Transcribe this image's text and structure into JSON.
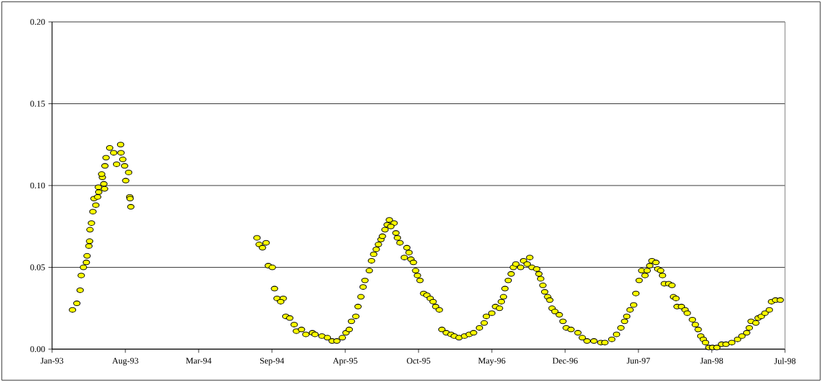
{
  "chart_data": {
    "type": "scatter",
    "marker": "circle",
    "grid": "y",
    "xlim": [
      "1993-01-25",
      "1998-07-28"
    ],
    "xticks": [
      {
        "value": "1993-01-25",
        "label": "Jan-93"
      },
      {
        "value": "1993-08-14",
        "label": "Aug-93"
      },
      {
        "value": "1994-03-03",
        "label": "Mar-94"
      },
      {
        "value": "1994-09-20",
        "label": "Sep-94"
      },
      {
        "value": "1995-04-09",
        "label": "Apr-95"
      },
      {
        "value": "1995-10-27",
        "label": "Oct-95"
      },
      {
        "value": "1996-05-15",
        "label": "May-96"
      },
      {
        "value": "1996-12-02",
        "label": "Dec-96"
      },
      {
        "value": "1997-06-21",
        "label": "Jun-97"
      },
      {
        "value": "1998-01-08",
        "label": "Jan-98"
      },
      {
        "value": "1998-07-28",
        "label": "Jul-98"
      }
    ],
    "ylim": [
      0,
      0.2
    ],
    "yticks": [
      {
        "value": 0,
        "label": "0.00"
      },
      {
        "value": 0.05,
        "label": "0.05"
      },
      {
        "value": 0.1,
        "label": "0.10"
      },
      {
        "value": 0.15,
        "label": "0.15"
      },
      {
        "value": 0.2,
        "label": "0.20"
      }
    ],
    "series": [
      {
        "color": "#ffff00",
        "x": [
          "1993-03-22",
          "1993-04-03",
          "1993-04-12",
          "1993-04-15",
          "1993-04-21",
          "1993-04-29",
          "1993-05-01",
          "1993-05-06",
          "1993-05-08",
          "1993-05-09",
          "1993-05-13",
          "1993-05-17",
          "1993-05-25",
          "1993-05-20",
          "1993-05-30",
          "1993-06-02",
          "1993-06-01",
          "1993-06-18",
          "1993-06-16",
          "1993-06-12",
          "1993-06-10",
          "1993-06-19",
          "1993-06-22",
          "1993-07-02",
          "1993-07-13",
          "1993-07-21",
          "1993-08-01",
          "1993-08-02",
          "1993-08-07",
          "1993-08-12",
          "1993-08-15",
          "1993-08-23",
          "1993-08-26",
          "1993-08-27",
          "1993-08-29",
          "1994-08-10",
          "1994-08-16",
          "1994-08-25",
          "1994-09-04",
          "1994-09-10",
          "1994-09-21",
          "1994-09-27",
          "1994-10-04",
          "1994-10-21",
          "1994-10-14",
          "1994-10-28",
          "1994-11-08",
          "1994-11-20",
          "1994-11-26",
          "1994-12-10",
          "1994-12-22",
          "1995-01-09",
          "1995-01-16",
          "1995-02-04",
          "1995-02-19",
          "1995-03-04",
          "1995-03-17",
          "1995-04-01",
          "1995-04-11",
          "1995-04-20",
          "1995-04-26",
          "1995-05-08",
          "1995-05-14",
          "1995-05-22",
          "1995-05-28",
          "1995-06-02",
          "1995-06-14",
          "1995-06-20",
          "1995-06-26",
          "1995-07-03",
          "1995-07-09",
          "1995-07-16",
          "1995-07-20",
          "1995-07-27",
          "1995-08-02",
          "1995-08-08",
          "1995-08-21",
          "1995-08-12",
          "1995-08-26",
          "1995-08-30",
          "1995-09-06",
          "1995-09-18",
          "1995-09-25",
          "1995-10-01",
          "1995-10-06",
          "1995-10-13",
          "1995-10-19",
          "1995-10-24",
          "1995-10-31",
          "1995-11-10",
          "1995-11-19",
          "1995-11-28",
          "1995-12-06",
          "1995-12-13",
          "1995-12-23",
          "1995-12-30",
          "1996-01-11",
          "1996-01-24",
          "1996-02-02",
          "1996-02-15",
          "1996-03-01",
          "1996-03-14",
          "1996-03-26",
          "1996-04-11",
          "1996-04-24",
          "1996-04-30",
          "1996-05-15",
          "1996-05-25",
          "1996-06-05",
          "1996-06-10",
          "1996-06-16",
          "1996-06-20",
          "1996-06-29",
          "1996-07-07",
          "1996-07-13",
          "1996-07-20",
          "1996-08-02",
          "1996-08-10",
          "1996-08-20",
          "1996-08-27",
          "1996-09-02",
          "1996-09-15",
          "1996-09-21",
          "1996-09-26",
          "1996-10-02",
          "1996-10-07",
          "1996-10-15",
          "1996-10-21",
          "1996-10-27",
          "1996-11-04",
          "1996-11-16",
          "1996-11-26",
          "1996-12-05",
          "1996-12-18",
          "1997-01-06",
          "1997-01-18",
          "1997-01-31",
          "1997-02-19",
          "1997-03-10",
          "1997-03-21",
          "1997-04-09",
          "1997-04-22",
          "1997-05-04",
          "1997-05-14",
          "1997-05-20",
          "1997-05-29",
          "1997-06-08",
          "1997-06-14",
          "1997-06-23",
          "1997-07-09",
          "1997-06-30",
          "1997-07-15",
          "1997-07-22",
          "1997-07-28",
          "1997-08-08",
          "1997-08-13",
          "1997-08-21",
          "1997-08-26",
          "1997-08-31",
          "1997-09-12",
          "1997-09-21",
          "1997-09-25",
          "1997-10-02",
          "1997-10-05",
          "1997-10-17",
          "1997-10-27",
          "1997-11-02",
          "1997-11-16",
          "1997-11-24",
          "1997-12-02",
          "1997-12-09",
          "1997-12-16",
          "1997-12-22",
          "1997-12-31",
          "1998-01-10",
          "1998-01-22",
          "1998-02-04",
          "1998-02-16",
          "1998-03-04",
          "1998-03-20",
          "1998-04-01",
          "1998-04-14",
          "1998-04-21",
          "1998-04-26",
          "1998-05-09",
          "1998-05-15",
          "1998-05-24",
          "1998-06-03",
          "1998-06-15",
          "1998-06-21",
          "1998-07-02",
          "1998-07-15"
        ],
        "values": [
          0.024,
          0.028,
          0.036,
          0.045,
          0.05,
          0.053,
          0.057,
          0.063,
          0.066,
          0.073,
          0.077,
          0.084,
          0.088,
          0.092,
          0.093,
          0.096,
          0.099,
          0.098,
          0.101,
          0.105,
          0.107,
          0.112,
          0.117,
          0.123,
          0.12,
          0.113,
          0.125,
          0.12,
          0.116,
          0.112,
          0.103,
          0.108,
          0.093,
          0.092,
          0.087,
          0.068,
          0.064,
          0.062,
          0.065,
          0.051,
          0.05,
          0.037,
          0.031,
          0.031,
          0.029,
          0.02,
          0.019,
          0.015,
          0.011,
          0.012,
          0.009,
          0.01,
          0.009,
          0.008,
          0.007,
          0.005,
          0.005,
          0.007,
          0.01,
          0.012,
          0.017,
          0.02,
          0.026,
          0.032,
          0.038,
          0.042,
          0.048,
          0.054,
          0.058,
          0.061,
          0.064,
          0.067,
          0.069,
          0.073,
          0.076,
          0.079,
          0.077,
          0.075,
          0.071,
          0.068,
          0.065,
          0.056,
          0.062,
          0.059,
          0.055,
          0.053,
          0.048,
          0.045,
          0.042,
          0.034,
          0.033,
          0.031,
          0.029,
          0.026,
          0.024,
          0.012,
          0.01,
          0.009,
          0.008,
          0.007,
          0.008,
          0.009,
          0.01,
          0.013,
          0.016,
          0.02,
          0.022,
          0.026,
          0.025,
          0.029,
          0.032,
          0.037,
          0.042,
          0.046,
          0.05,
          0.052,
          0.05,
          0.054,
          0.052,
          0.056,
          0.05,
          0.049,
          0.046,
          0.043,
          0.039,
          0.035,
          0.032,
          0.03,
          0.025,
          0.023,
          0.021,
          0.017,
          0.013,
          0.012,
          0.01,
          0.007,
          0.005,
          0.005,
          0.004,
          0.004,
          0.006,
          0.009,
          0.013,
          0.017,
          0.02,
          0.024,
          0.027,
          0.034,
          0.042,
          0.045,
          0.048,
          0.048,
          0.051,
          0.054,
          0.053,
          0.049,
          0.048,
          0.045,
          0.04,
          0.04,
          0.039,
          0.032,
          0.031,
          0.026,
          0.026,
          0.024,
          0.022,
          0.018,
          0.015,
          0.012,
          0.008,
          0.006,
          0.004,
          0.001,
          0.001,
          0.001,
          0.003,
          0.003,
          0.004,
          0.006,
          0.008,
          0.01,
          0.013,
          0.017,
          0.016,
          0.019,
          0.02,
          0.022,
          0.024,
          0.029,
          0.03,
          0.03
        ]
      }
    ]
  }
}
